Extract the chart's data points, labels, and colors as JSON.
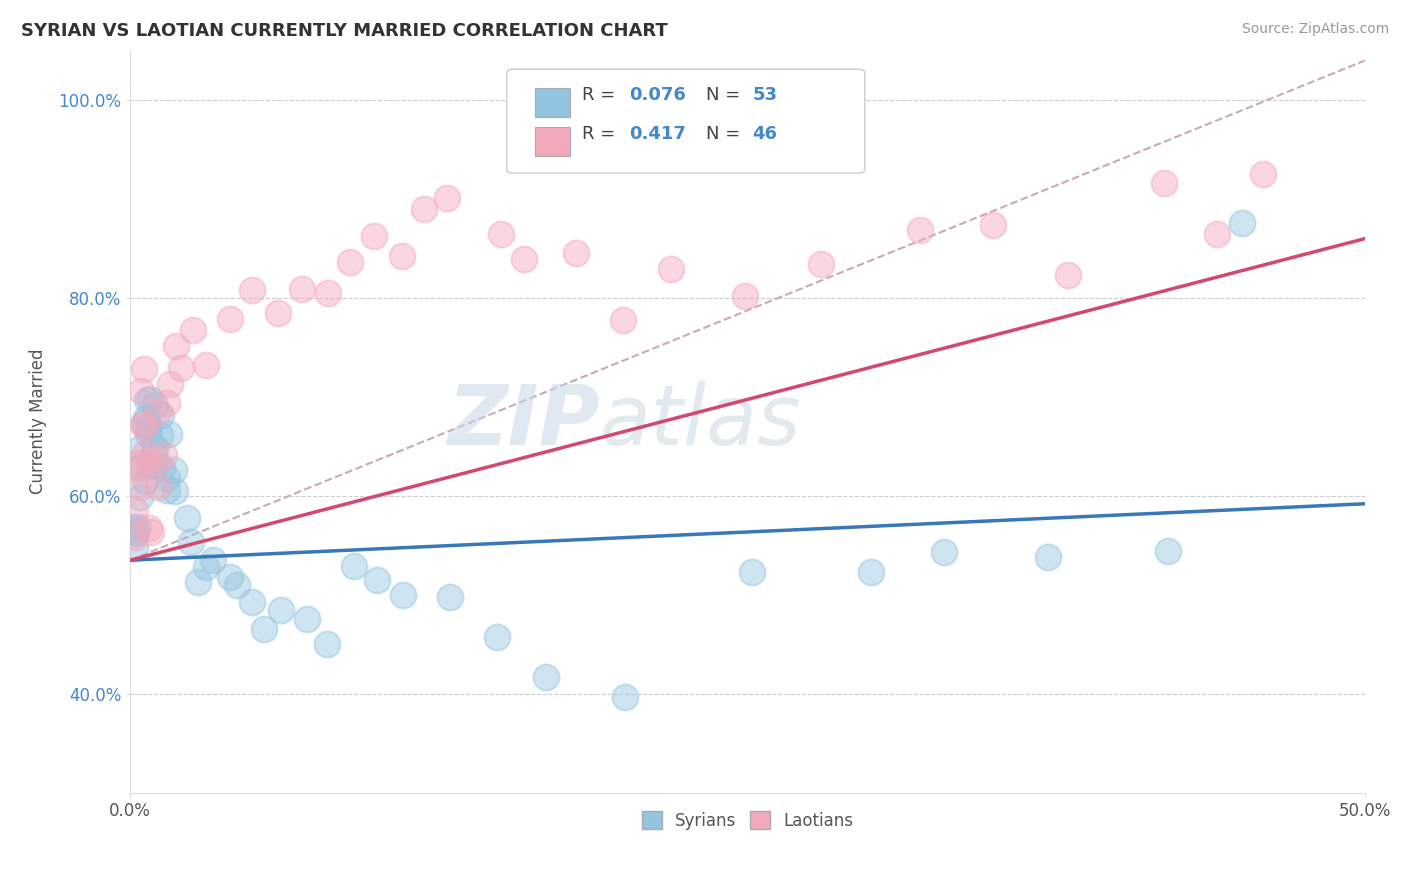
{
  "title": "SYRIAN VS LAOTIAN CURRENTLY MARRIED CORRELATION CHART",
  "source_text": "Source: ZipAtlas.com",
  "ylabel": "Currently Married",
  "xlim": [
    0.0,
    0.5
  ],
  "ylim": [
    0.3,
    1.05
  ],
  "xticks": [
    0.0,
    0.5
  ],
  "xticklabels": [
    "0.0%",
    "50.0%"
  ],
  "yticks": [
    0.4,
    0.6,
    0.8,
    1.0
  ],
  "yticklabels": [
    "40.0%",
    "60.0%",
    "80.0%",
    "100.0%"
  ],
  "blue_color": "#93c4e0",
  "pink_color": "#f4a8bc",
  "blue_line_color": "#3878b8",
  "pink_line_color": "#d44870",
  "ref_line_color": "#c8a8c0",
  "watermark_zip": "ZIP",
  "watermark_atlas": "atlas",
  "syrians_x": [
    0.001,
    0.002,
    0.002,
    0.003,
    0.003,
    0.004,
    0.004,
    0.005,
    0.005,
    0.006,
    0.006,
    0.007,
    0.007,
    0.008,
    0.008,
    0.009,
    0.009,
    0.01,
    0.01,
    0.011,
    0.011,
    0.012,
    0.013,
    0.014,
    0.015,
    0.016,
    0.018,
    0.02,
    0.022,
    0.025,
    0.028,
    0.03,
    0.035,
    0.04,
    0.045,
    0.05,
    0.055,
    0.06,
    0.07,
    0.08,
    0.09,
    0.1,
    0.11,
    0.13,
    0.15,
    0.17,
    0.2,
    0.25,
    0.3,
    0.33,
    0.37,
    0.42,
    0.45
  ],
  "syrians_y": [
    0.56,
    0.57,
    0.55,
    0.58,
    0.56,
    0.6,
    0.62,
    0.65,
    0.63,
    0.68,
    0.66,
    0.7,
    0.67,
    0.68,
    0.64,
    0.7,
    0.66,
    0.68,
    0.65,
    0.63,
    0.67,
    0.65,
    0.63,
    0.66,
    0.6,
    0.62,
    0.64,
    0.6,
    0.57,
    0.55,
    0.52,
    0.53,
    0.54,
    0.52,
    0.5,
    0.48,
    0.46,
    0.48,
    0.47,
    0.45,
    0.53,
    0.52,
    0.5,
    0.48,
    0.45,
    0.42,
    0.4,
    0.53,
    0.52,
    0.54,
    0.55,
    0.54,
    0.88
  ],
  "laotians_x": [
    0.001,
    0.002,
    0.003,
    0.003,
    0.004,
    0.004,
    0.005,
    0.005,
    0.006,
    0.006,
    0.007,
    0.008,
    0.009,
    0.01,
    0.011,
    0.012,
    0.013,
    0.015,
    0.016,
    0.018,
    0.02,
    0.025,
    0.03,
    0.04,
    0.05,
    0.06,
    0.07,
    0.08,
    0.09,
    0.1,
    0.11,
    0.12,
    0.13,
    0.15,
    0.16,
    0.18,
    0.2,
    0.22,
    0.25,
    0.28,
    0.32,
    0.35,
    0.38,
    0.42,
    0.44,
    0.46
  ],
  "laotians_y": [
    0.56,
    0.58,
    0.6,
    0.62,
    0.64,
    0.7,
    0.66,
    0.72,
    0.68,
    0.64,
    0.62,
    0.58,
    0.56,
    0.6,
    0.64,
    0.68,
    0.65,
    0.7,
    0.72,
    0.75,
    0.73,
    0.76,
    0.74,
    0.78,
    0.8,
    0.78,
    0.82,
    0.8,
    0.84,
    0.86,
    0.84,
    0.88,
    0.9,
    0.88,
    0.85,
    0.84,
    0.78,
    0.82,
    0.8,
    0.84,
    0.86,
    0.88,
    0.84,
    0.9,
    0.88,
    0.92
  ],
  "blue_trend_x": [
    0.0,
    0.5
  ],
  "blue_trend_y": [
    0.535,
    0.592
  ],
  "pink_trend_x": [
    0.0,
    0.5
  ],
  "pink_trend_y": [
    0.535,
    0.86
  ],
  "ref_line_x": [
    0.0,
    0.5
  ],
  "ref_line_y": [
    0.535,
    1.04
  ],
  "legend_r_blue": "0.076",
  "legend_n_blue": "53",
  "legend_r_pink": "0.417",
  "legend_n_pink": "46"
}
